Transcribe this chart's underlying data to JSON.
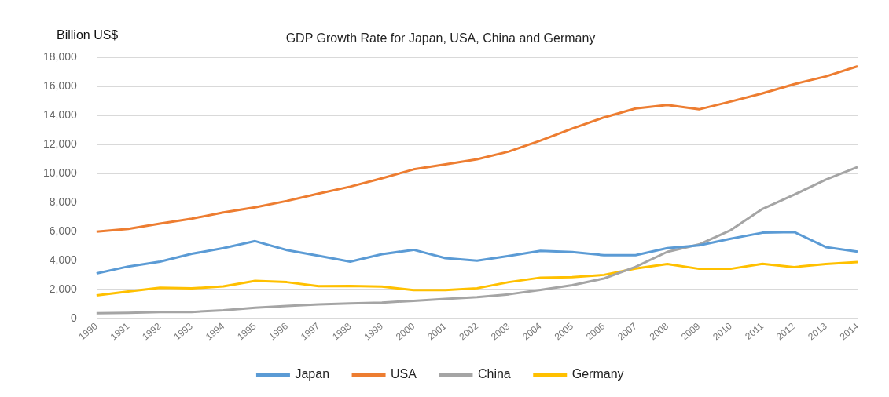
{
  "chart_data": {
    "type": "line",
    "title": "GDP Growth Rate for Japan, USA, China and Germany",
    "ylabel": "Billion US$",
    "categories": [
      "1990",
      "1991",
      "1992",
      "1993",
      "1994",
      "1995",
      "1996",
      "1997",
      "1998",
      "1999",
      "2000",
      "2001",
      "2002",
      "2003",
      "2004",
      "2005",
      "2006",
      "2007",
      "2008",
      "2009",
      "2010",
      "2011",
      "2012",
      "2013",
      "2014"
    ],
    "series": [
      {
        "name": "Japan",
        "color": "#5b9bd5",
        "values": [
          3100,
          3580,
          3910,
          4450,
          4850,
          5330,
          4710,
          4320,
          3910,
          4430,
          4730,
          4160,
          3980,
          4300,
          4660,
          4570,
          4360,
          4360,
          4850,
          5040,
          5500,
          5910,
          5960,
          4920,
          4600
        ]
      },
      {
        "name": "USA",
        "color": "#ed7d31",
        "values": [
          5980,
          6170,
          6540,
          6880,
          7310,
          7660,
          8100,
          8610,
          9090,
          9660,
          10280,
          10620,
          10980,
          11510,
          12270,
          13090,
          13860,
          14480,
          14720,
          14420,
          14960,
          15520,
          16160,
          16690,
          17390
        ]
      },
      {
        "name": "China",
        "color": "#a5a5a5",
        "values": [
          360,
          380,
          430,
          440,
          560,
          730,
          860,
          960,
          1030,
          1090,
          1210,
          1340,
          1470,
          1660,
          1960,
          2290,
          2750,
          3550,
          4590,
          5100,
          6090,
          7550,
          8530,
          9570,
          10440
        ]
      },
      {
        "name": "Germany",
        "color": "#ffc000",
        "values": [
          1590,
          1860,
          2120,
          2070,
          2210,
          2590,
          2500,
          2220,
          2240,
          2200,
          1950,
          1950,
          2080,
          2500,
          2810,
          2850,
          3000,
          3440,
          3750,
          3420,
          3420,
          3760,
          3540,
          3750,
          3890
        ]
      }
    ],
    "ylim": [
      0,
      18000
    ],
    "yticks": [
      0,
      {
        "value": 2000,
        "label": "2,000"
      },
      {
        "value": 4000,
        "label": "4,000"
      },
      {
        "value": 6000,
        "label": "6,000"
      },
      {
        "value": 8000,
        "label": "8,000"
      },
      {
        "value": 10000,
        "label": "10,000"
      },
      {
        "value": 12000,
        "label": "12,000"
      },
      {
        "value": 14000,
        "label": "14,000"
      },
      {
        "value": 16000,
        "label": "16,000"
      },
      {
        "value": 18000,
        "label": "18,000"
      }
    ],
    "grid": "y",
    "legend": "bottom",
    "marker": "none",
    "line_style": "solid"
  }
}
